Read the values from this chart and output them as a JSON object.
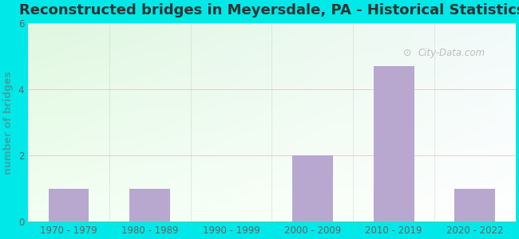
{
  "categories": [
    "1970 - 1979",
    "1980 - 1989",
    "1990 - 1999",
    "2000 - 2009",
    "2010 - 2019",
    "2020 - 2022"
  ],
  "values": [
    1,
    1,
    0,
    2,
    4.7,
    1
  ],
  "bar_color": "#b8a8d0",
  "title": "Reconstructed bridges in Meyersdale, PA - Historical Statistics",
  "ylabel": "number of bridges",
  "ylim": [
    0,
    6
  ],
  "yticks": [
    0,
    2,
    4,
    6
  ],
  "background_color": "#00e8e8",
  "title_color": "#333333",
  "ylabel_color": "#33aaaa",
  "tick_color": "#666666",
  "title_fontsize": 13,
  "axis_label_fontsize": 9,
  "tick_fontsize": 8.5,
  "watermark": "City-Data.com",
  "grid_color": "#ddbbbb",
  "plot_bg_topleft": [
    0.88,
    0.97,
    0.88
  ],
  "plot_bg_topright": [
    0.95,
    0.98,
    0.98
  ],
  "plot_bg_bottomleft": [
    0.95,
    1.0,
    0.95
  ],
  "plot_bg_bottomright": [
    1.0,
    1.0,
    1.0
  ]
}
